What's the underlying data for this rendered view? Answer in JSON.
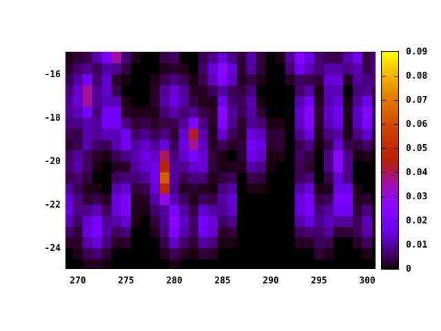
{
  "figure": {
    "background": "#ffffff",
    "plot_bg": "#000000",
    "title": ""
  },
  "chart_data": {
    "type": "heatmap",
    "title": "",
    "xlabel": "",
    "ylabel": "",
    "x_axis": {
      "tick_labels": [
        "270",
        "275",
        "280",
        "285",
        "290",
        "295",
        "300"
      ],
      "tick_values": [
        270,
        275,
        280,
        285,
        290,
        295,
        300
      ],
      "range": [
        268.7,
        300.9
      ]
    },
    "y_axis": {
      "tick_labels": [
        "-16",
        "-18",
        "-20",
        "-22",
        "-24"
      ],
      "tick_values": [
        -16,
        -18,
        -20,
        -22,
        -24
      ],
      "range": [
        -25.0,
        -15.0
      ]
    },
    "colorbar": {
      "min": 0,
      "max": 0.09,
      "tick_labels": [
        "0",
        "0.01",
        "0.02",
        "0.03",
        "0.04",
        "0.05",
        "0.06",
        "0.07",
        "0.08",
        "0.09"
      ],
      "tick_values": [
        0,
        0.01,
        0.02,
        0.03,
        0.04,
        0.05,
        0.06,
        0.07,
        0.08,
        0.09
      ],
      "palette": "gnuplot pm3d rgbformulae 7,5,15 (black-violet-magenta-red-orange-yellow)"
    },
    "grid": {
      "cell_dx": 1.0,
      "cell_dy": 0.5
    },
    "blobs": [
      {
        "x": 273.3,
        "y": -15.0,
        "sx": 1.15,
        "sy": 0.6,
        "v": 0.022
      },
      {
        "x": 274.0,
        "y": -15.0,
        "sx": 0.38,
        "sy": 0.42,
        "v": 0.042
      },
      {
        "x": 270.8,
        "y": -17.1,
        "sx": 0.95,
        "sy": 1.05,
        "v": 0.02
      },
      {
        "x": 270.8,
        "y": -17.0,
        "sx": 0.5,
        "sy": 0.62,
        "v": 0.042
      },
      {
        "x": 273.0,
        "y": -16.5,
        "sx": 0.55,
        "sy": 0.85,
        "v": 0.014
      },
      {
        "x": 273.5,
        "y": -18.0,
        "sx": 0.7,
        "sy": 0.75,
        "v": 0.025
      },
      {
        "x": 274.7,
        "y": -19.0,
        "sx": 0.65,
        "sy": 0.55,
        "v": 0.022
      },
      {
        "x": 272.0,
        "y": -18.4,
        "sx": 0.55,
        "sy": 0.8,
        "v": 0.01
      },
      {
        "x": 270.9,
        "y": -19.0,
        "sx": 0.6,
        "sy": 0.6,
        "v": 0.012
      },
      {
        "x": 269.2,
        "y": -17.5,
        "sx": 0.5,
        "sy": 1.1,
        "v": 0.01
      },
      {
        "x": 269.9,
        "y": -20.1,
        "sx": 0.95,
        "sy": 0.65,
        "v": 0.011
      },
      {
        "x": 280.0,
        "y": -17.1,
        "sx": 1.05,
        "sy": 0.7,
        "v": 0.016
      },
      {
        "x": 279.6,
        "y": -14.9,
        "sx": 0.5,
        "sy": 0.5,
        "v": 0.01
      },
      {
        "x": 283.6,
        "y": -15.7,
        "sx": 0.5,
        "sy": 0.7,
        "v": 0.012
      },
      {
        "x": 285.0,
        "y": -15.9,
        "sx": 0.9,
        "sy": 0.6,
        "v": 0.027
      },
      {
        "x": 285.2,
        "y": -17.9,
        "sx": 0.55,
        "sy": 0.75,
        "v": 0.027
      },
      {
        "x": 288.0,
        "y": -15.4,
        "sx": 0.65,
        "sy": 0.6,
        "v": 0.011
      },
      {
        "x": 287.7,
        "y": -17.4,
        "sx": 0.55,
        "sy": 0.7,
        "v": 0.013
      },
      {
        "x": 288.4,
        "y": -19.3,
        "sx": 0.7,
        "sy": 0.85,
        "v": 0.022
      },
      {
        "x": 290.5,
        "y": -19.0,
        "sx": 0.45,
        "sy": 0.5,
        "v": 0.006
      },
      {
        "x": 293.2,
        "y": -15.3,
        "sx": 0.85,
        "sy": 0.55,
        "v": 0.025
      },
      {
        "x": 293.7,
        "y": -17.9,
        "sx": 0.6,
        "sy": 0.9,
        "v": 0.027
      },
      {
        "x": 293.4,
        "y": -19.8,
        "sx": 0.5,
        "sy": 0.6,
        "v": 0.008
      },
      {
        "x": 295.3,
        "y": -15.5,
        "sx": 0.45,
        "sy": 0.6,
        "v": 0.009
      },
      {
        "x": 296.5,
        "y": -16.3,
        "sx": 0.6,
        "sy": 0.7,
        "v": 0.02
      },
      {
        "x": 296.6,
        "y": -17.8,
        "sx": 0.6,
        "sy": 0.9,
        "v": 0.022
      },
      {
        "x": 298.7,
        "y": -15.3,
        "sx": 0.75,
        "sy": 0.5,
        "v": 0.018
      },
      {
        "x": 299.4,
        "y": -16.3,
        "sx": 0.6,
        "sy": 0.6,
        "v": 0.012
      },
      {
        "x": 300.8,
        "y": -15.8,
        "sx": 0.6,
        "sy": 0.8,
        "v": 0.009
      },
      {
        "x": 299.8,
        "y": -17.9,
        "sx": 0.7,
        "sy": 0.8,
        "v": 0.025
      },
      {
        "x": 281.9,
        "y": -19.2,
        "sx": 0.95,
        "sy": 1.0,
        "v": 0.024
      },
      {
        "x": 281.8,
        "y": -18.9,
        "sx": 0.5,
        "sy": 0.55,
        "v": 0.048
      },
      {
        "x": 282.8,
        "y": -20.0,
        "sx": 0.7,
        "sy": 0.6,
        "v": 0.016
      },
      {
        "x": 276.6,
        "y": -19.8,
        "sx": 0.55,
        "sy": 0.95,
        "v": 0.02
      },
      {
        "x": 278.8,
        "y": -20.6,
        "sx": 0.85,
        "sy": 1.2,
        "v": 0.026
      },
      {
        "x": 278.9,
        "y": -20.1,
        "sx": 0.42,
        "sy": 0.55,
        "v": 0.05
      },
      {
        "x": 278.85,
        "y": -20.8,
        "sx": 0.45,
        "sy": 0.6,
        "v": 0.068
      },
      {
        "x": 278.9,
        "y": -21.4,
        "sx": 0.4,
        "sy": 0.45,
        "v": 0.04
      },
      {
        "x": 274.6,
        "y": -22.0,
        "sx": 0.6,
        "sy": 0.85,
        "v": 0.026
      },
      {
        "x": 271.8,
        "y": -23.1,
        "sx": 0.95,
        "sy": 0.75,
        "v": 0.022
      },
      {
        "x": 269.3,
        "y": -22.1,
        "sx": 0.55,
        "sy": 0.85,
        "v": 0.018
      },
      {
        "x": 280.1,
        "y": -22.8,
        "sx": 0.75,
        "sy": 0.8,
        "v": 0.026
      },
      {
        "x": 283.3,
        "y": -22.9,
        "sx": 0.8,
        "sy": 0.7,
        "v": 0.022
      },
      {
        "x": 285.6,
        "y": -21.9,
        "sx": 0.55,
        "sy": 0.8,
        "v": 0.018
      },
      {
        "x": 293.6,
        "y": -22.0,
        "sx": 0.6,
        "sy": 0.85,
        "v": 0.026
      },
      {
        "x": 295.6,
        "y": -22.7,
        "sx": 0.55,
        "sy": 0.75,
        "v": 0.015
      },
      {
        "x": 295.3,
        "y": -23.7,
        "sx": 0.4,
        "sy": 0.5,
        "v": 0.007
      },
      {
        "x": 297.5,
        "y": -21.8,
        "sx": 0.65,
        "sy": 0.75,
        "v": 0.028
      },
      {
        "x": 297.0,
        "y": -20.0,
        "sx": 0.65,
        "sy": 0.65,
        "v": 0.028
      },
      {
        "x": 299.8,
        "y": -22.9,
        "sx": 0.6,
        "sy": 0.65,
        "v": 0.013
      }
    ]
  }
}
